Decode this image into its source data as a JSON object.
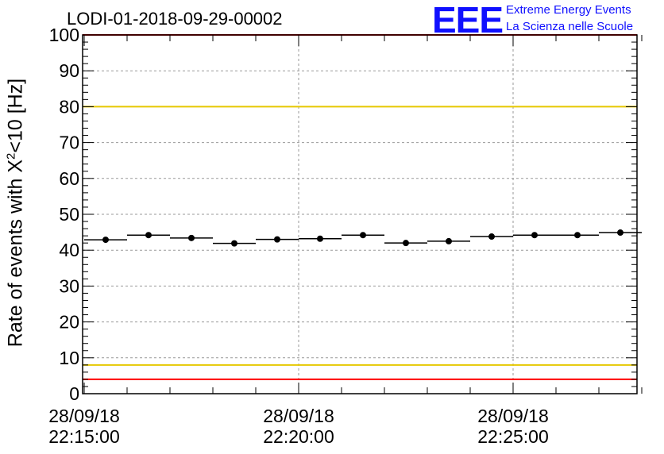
{
  "title": "LODI-01-2018-09-29-00002",
  "logo": {
    "mark": "EEE",
    "line1": "Extreme Energy Events",
    "line2": "La Scienza nelle Scuole",
    "color": "#1010ff"
  },
  "chart_data": {
    "type": "scatter",
    "title": "LODI-01-2018-09-29-00002",
    "ylabel_main": "Rate of events with X",
    "ylabel_sup": "2",
    "ylabel_tail": "<10 [Hz]",
    "xlabel": "",
    "ylim": [
      0,
      100
    ],
    "yticks": [
      "0",
      "10",
      "20",
      "30",
      "40",
      "50",
      "60",
      "70",
      "80",
      "90",
      "100"
    ],
    "xlim_seconds_from_first_tick": [
      0,
      798
    ],
    "xticks": [
      {
        "date": "28/09/18",
        "time": "22:15:00",
        "t": 0
      },
      {
        "date": "28/09/18",
        "time": "22:20:00",
        "t": 300
      },
      {
        "date": "28/09/18",
        "time": "22:25:00",
        "t": 600
      }
    ],
    "grid": true,
    "series": [
      {
        "x_bins_time": [
          "22:14:57",
          "22:15:57",
          "22:16:57",
          "22:17:57",
          "22:18:57",
          "22:19:57",
          "22:20:57",
          "22:21:57",
          "22:22:57",
          "22:23:57",
          "22:24:57",
          "22:25:57",
          "22:26:57",
          "22:27:57"
        ],
        "points": [
          {
            "t": 30,
            "y": 42.9
          },
          {
            "t": 90,
            "y": 44.2
          },
          {
            "t": 150,
            "y": 43.4
          },
          {
            "t": 210,
            "y": 41.9
          },
          {
            "t": 270,
            "y": 43.0
          },
          {
            "t": 330,
            "y": 43.2
          },
          {
            "t": 390,
            "y": 44.2
          },
          {
            "t": 450,
            "y": 42.0
          },
          {
            "t": 510,
            "y": 42.5
          },
          {
            "t": 570,
            "y": 43.8
          },
          {
            "t": 630,
            "y": 44.2
          },
          {
            "t": 690,
            "y": 44.2
          },
          {
            "t": 750,
            "y": 44.9
          }
        ],
        "bin_half_width_s": 30,
        "color": "#000000"
      }
    ],
    "reference_lines": [
      {
        "y": 100,
        "color": "#ff0000"
      },
      {
        "y": 4,
        "color": "#ff0000"
      },
      {
        "y": 80,
        "color": "#e6c800"
      },
      {
        "y": 8,
        "color": "#e6c800"
      }
    ]
  }
}
